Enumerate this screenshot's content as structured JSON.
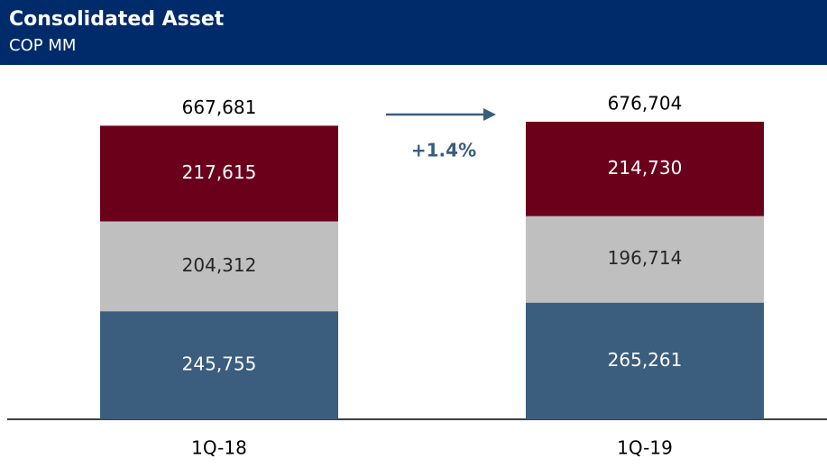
{
  "chart_data": {
    "type": "stacked_bar",
    "title": "Consolidated Asset",
    "subtitle": "COP MM",
    "categories": [
      "1Q-18",
      "1Q-19"
    ],
    "series": [
      {
        "color": "#3b5d7e",
        "label_color": "#ffffff",
        "values": [
          245755,
          265261
        ],
        "value_labels": [
          "245,755",
          "265,261"
        ]
      },
      {
        "color": "#bfbfbf",
        "label_color": "#262626",
        "values": [
          204312,
          196714
        ],
        "value_labels": [
          "204,312",
          "196,714"
        ]
      },
      {
        "color": "#6b001a",
        "label_color": "#ffffff",
        "values": [
          217615,
          214730
        ],
        "value_labels": [
          "217,615",
          "214,730"
        ]
      }
    ],
    "totals": [
      667681,
      676704
    ],
    "total_labels": [
      "667,681",
      "676,704"
    ],
    "annotation": "+1.4%"
  }
}
